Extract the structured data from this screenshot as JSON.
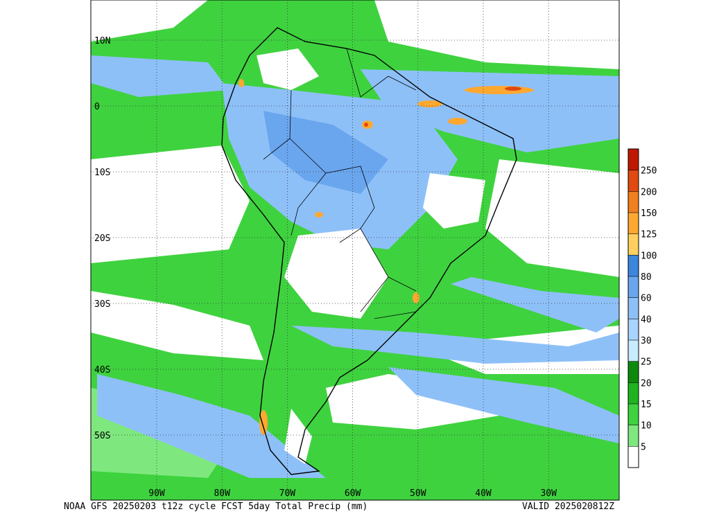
{
  "map": {
    "lat_labels": [
      "10N",
      "0",
      "10S",
      "20S",
      "30S",
      "40S",
      "50S"
    ],
    "lon_labels": [
      "90W",
      "80W",
      "70W",
      "60W",
      "50W",
      "40W",
      "30W"
    ],
    "footer_left": "NOAA GFS 20250203 t12z cycle FCST 5day Total Precip (mm)",
    "footer_right": "VALID 2025020812Z"
  },
  "colorbar": {
    "levels": [
      5,
      10,
      15,
      20,
      25,
      30,
      40,
      60,
      80,
      100,
      125,
      150,
      200,
      250
    ],
    "colors": [
      "#ffffff",
      "#7ee87e",
      "#3fd23f",
      "#1fb41f",
      "#0c8a0c",
      "#c8ecff",
      "#a8d4ff",
      "#8ec0f8",
      "#6aa6ee",
      "#3c86dc",
      "#ffd060",
      "#ffa830",
      "#f08020",
      "#e04a10",
      "#c01800"
    ]
  }
}
